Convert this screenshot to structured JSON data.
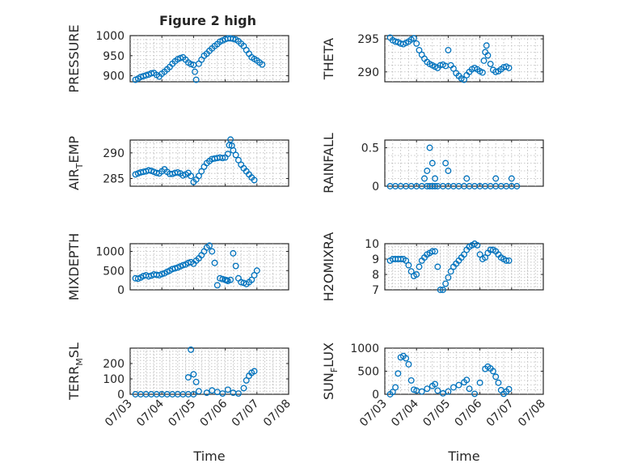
{
  "figure": {
    "title": "Figure 2 high"
  },
  "chart_data": [
    {
      "type": "scatter",
      "title": "Figure 2 high",
      "xlabel": "",
      "ylabel": "PRESSURE",
      "ylim": [
        885,
        1000
      ],
      "yticks": [
        900,
        950,
        1000
      ],
      "show_xticks": false,
      "series": [
        {
          "x": [
            "2021-07-03 04:00",
            "2021-07-03 06:00",
            "2021-07-03 08:00",
            "2021-07-03 10:00",
            "2021-07-03 12:00",
            "2021-07-03 14:00",
            "2021-07-03 16:00",
            "2021-07-03 18:00",
            "2021-07-03 20:00",
            "2021-07-03 22:00",
            "2021-07-04 00:00",
            "2021-07-04 02:00",
            "2021-07-04 04:00",
            "2021-07-04 06:00",
            "2021-07-04 08:00",
            "2021-07-04 10:00",
            "2021-07-04 12:00",
            "2021-07-04 14:00",
            "2021-07-04 16:00",
            "2021-07-04 18:00",
            "2021-07-04 20:00",
            "2021-07-04 22:00",
            "2021-07-05 00:00",
            "2021-07-05 01:00",
            "2021-07-05 02:00",
            "2021-07-05 04:00",
            "2021-07-05 06:00",
            "2021-07-05 08:00",
            "2021-07-05 10:00",
            "2021-07-05 12:00",
            "2021-07-05 14:00",
            "2021-07-05 16:00",
            "2021-07-05 18:00",
            "2021-07-05 20:00",
            "2021-07-05 22:00",
            "2021-07-06 00:00",
            "2021-07-06 02:00",
            "2021-07-06 04:00",
            "2021-07-06 06:00",
            "2021-07-06 08:00",
            "2021-07-06 10:00",
            "2021-07-06 12:00",
            "2021-07-06 14:00",
            "2021-07-06 16:00",
            "2021-07-06 18:00",
            "2021-07-06 20:00",
            "2021-07-06 22:00",
            "2021-07-07 00:00",
            "2021-07-07 02:00",
            "2021-07-07 04:00"
          ],
          "y": [
            890,
            893,
            897,
            899,
            901,
            903,
            906,
            907,
            902,
            898,
            905,
            910,
            916,
            922,
            930,
            936,
            941,
            944,
            946,
            940,
            933,
            929,
            927,
            910,
            890,
            930,
            940,
            950,
            955,
            962,
            968,
            974,
            979,
            985,
            988,
            991,
            993,
            993,
            992,
            990,
            986,
            980,
            974,
            964,
            955,
            946,
            942,
            938,
            933,
            928
          ]
        }
      ]
    },
    {
      "type": "scatter",
      "xlabel": "",
      "ylabel": "THETA",
      "ylim": [
        288.5,
        295.5
      ],
      "yticks": [
        290,
        295
      ],
      "show_xticks": false,
      "series": [
        {
          "x": [
            "2021-07-03 04:00",
            "2021-07-03 06:00",
            "2021-07-03 08:00",
            "2021-07-03 10:00",
            "2021-07-03 12:00",
            "2021-07-03 14:00",
            "2021-07-03 16:00",
            "2021-07-03 18:00",
            "2021-07-03 20:00",
            "2021-07-03 22:00",
            "2021-07-04 00:00",
            "2021-07-04 02:00",
            "2021-07-04 04:00",
            "2021-07-04 06:00",
            "2021-07-04 08:00",
            "2021-07-04 10:00",
            "2021-07-04 12:00",
            "2021-07-04 14:00",
            "2021-07-04 16:00",
            "2021-07-04 18:00",
            "2021-07-04 20:00",
            "2021-07-04 22:00",
            "2021-07-05 00:00",
            "2021-07-05 02:00",
            "2021-07-05 04:00",
            "2021-07-05 06:00",
            "2021-07-05 08:00",
            "2021-07-05 10:00",
            "2021-07-05 12:00",
            "2021-07-05 14:00",
            "2021-07-05 16:00",
            "2021-07-05 18:00",
            "2021-07-05 20:00",
            "2021-07-05 22:00",
            "2021-07-06 00:00",
            "2021-07-06 02:00",
            "2021-07-06 03:00",
            "2021-07-06 04:00",
            "2021-07-06 05:00",
            "2021-07-06 06:00",
            "2021-07-06 08:00",
            "2021-07-06 10:00",
            "2021-07-06 12:00",
            "2021-07-06 14:00",
            "2021-07-06 16:00",
            "2021-07-06 18:00",
            "2021-07-06 20:00",
            "2021-07-06 22:00"
          ],
          "y": [
            295.2,
            294.8,
            294.6,
            294.5,
            294.3,
            294.2,
            294.4,
            294.6,
            294.9,
            295.1,
            294.3,
            293.3,
            292.6,
            292.0,
            291.5,
            291.2,
            291.0,
            290.8,
            290.6,
            291.0,
            291.1,
            290.9,
            293.3,
            291.0,
            290.5,
            289.8,
            289.4,
            289.0,
            288.8,
            289.5,
            290.0,
            290.4,
            290.6,
            290.4,
            290.1,
            289.9,
            291.7,
            293.0,
            294.0,
            292.5,
            291.2,
            290.3,
            290.0,
            290.1,
            290.4,
            290.7,
            290.8,
            290.6
          ]
        }
      ]
    },
    {
      "type": "scatter",
      "xlabel": "",
      "ylabel": "AIR_TEMP",
      "ylim": [
        283.5,
        292.5
      ],
      "yticks": [
        285,
        290
      ],
      "show_xticks": false,
      "series": [
        {
          "x": [
            "2021-07-03 04:00",
            "2021-07-03 06:00",
            "2021-07-03 08:00",
            "2021-07-03 10:00",
            "2021-07-03 12:00",
            "2021-07-03 14:00",
            "2021-07-03 16:00",
            "2021-07-03 18:00",
            "2021-07-03 20:00",
            "2021-07-03 22:00",
            "2021-07-04 00:00",
            "2021-07-04 02:00",
            "2021-07-04 04:00",
            "2021-07-04 06:00",
            "2021-07-04 08:00",
            "2021-07-04 10:00",
            "2021-07-04 12:00",
            "2021-07-04 14:00",
            "2021-07-04 16:00",
            "2021-07-04 18:00",
            "2021-07-04 20:00",
            "2021-07-04 22:00",
            "2021-07-05 00:00",
            "2021-07-05 02:00",
            "2021-07-05 04:00",
            "2021-07-05 06:00",
            "2021-07-05 08:00",
            "2021-07-05 10:00",
            "2021-07-05 12:00",
            "2021-07-05 14:00",
            "2021-07-05 16:00",
            "2021-07-05 18:00",
            "2021-07-05 20:00",
            "2021-07-05 22:00",
            "2021-07-06 00:00",
            "2021-07-06 02:00",
            "2021-07-06 03:00",
            "2021-07-06 04:00",
            "2021-07-06 05:00",
            "2021-07-06 06:00",
            "2021-07-06 08:00",
            "2021-07-06 10:00",
            "2021-07-06 12:00",
            "2021-07-06 14:00",
            "2021-07-06 16:00",
            "2021-07-06 18:00",
            "2021-07-06 20:00",
            "2021-07-06 22:00"
          ],
          "y": [
            285.8,
            286.0,
            286.2,
            286.3,
            286.4,
            286.6,
            286.5,
            286.3,
            286.1,
            286.0,
            286.4,
            286.8,
            286.3,
            285.9,
            285.9,
            286.1,
            286.2,
            286.0,
            285.6,
            285.8,
            286.1,
            285.5,
            284.3,
            284.8,
            285.5,
            286.4,
            287.3,
            288.0,
            288.4,
            288.8,
            288.9,
            289.0,
            289.1,
            289.0,
            289.1,
            289.8,
            291.5,
            292.6,
            291.4,
            290.5,
            289.6,
            288.6,
            287.7,
            287.0,
            286.4,
            285.8,
            285.2,
            284.7
          ]
        }
      ]
    },
    {
      "type": "scatter",
      "xlabel": "",
      "ylabel": "RAINFALL",
      "ylim": [
        0,
        0.6
      ],
      "yticks": [
        0,
        0.5
      ],
      "show_xticks": false,
      "series": [
        {
          "x": [
            "2021-07-03 04:00",
            "2021-07-03 08:00",
            "2021-07-03 12:00",
            "2021-07-03 16:00",
            "2021-07-03 20:00",
            "2021-07-04 00:00",
            "2021-07-04 04:00",
            "2021-07-04 08:00",
            "2021-07-04 10:00",
            "2021-07-04 12:00",
            "2021-07-04 14:00",
            "2021-07-04 16:00",
            "2021-07-04 20:00",
            "2021-07-05 00:00",
            "2021-07-05 04:00",
            "2021-07-05 08:00",
            "2021-07-05 12:00",
            "2021-07-05 16:00",
            "2021-07-05 20:00",
            "2021-07-06 00:00",
            "2021-07-06 04:00",
            "2021-07-06 08:00",
            "2021-07-06 12:00",
            "2021-07-06 16:00",
            "2021-07-06 20:00",
            "2021-07-07 00:00",
            "2021-07-07 04:00",
            "2021-07-04 06:00",
            "2021-07-04 08:00",
            "2021-07-04 10:00",
            "2021-07-04 12:00",
            "2021-07-04 14:00",
            "2021-07-04 22:00",
            "2021-07-05 00:00",
            "2021-07-05 14:00",
            "2021-07-06 12:00",
            "2021-07-07 00:00"
          ],
          "y": [
            0,
            0,
            0,
            0,
            0,
            0,
            0,
            0,
            0,
            0,
            0,
            0,
            0,
            0,
            0,
            0,
            0,
            0,
            0,
            0,
            0,
            0,
            0,
            0,
            0,
            0,
            0,
            0.1,
            0.2,
            0.5,
            0.3,
            0.1,
            0.3,
            0.2,
            0.1,
            0.1,
            0.1
          ]
        }
      ]
    },
    {
      "type": "scatter",
      "xlabel": "",
      "ylabel": "MIXDEPTH",
      "ylim": [
        0,
        1200
      ],
      "yticks": [
        0,
        500,
        1000
      ],
      "show_xticks": false,
      "series": [
        {
          "x": [
            "2021-07-03 04:00",
            "2021-07-03 06:00",
            "2021-07-03 08:00",
            "2021-07-03 10:00",
            "2021-07-03 12:00",
            "2021-07-03 14:00",
            "2021-07-03 16:00",
            "2021-07-03 18:00",
            "2021-07-03 20:00",
            "2021-07-03 22:00",
            "2021-07-04 00:00",
            "2021-07-04 02:00",
            "2021-07-04 04:00",
            "2021-07-04 06:00",
            "2021-07-04 08:00",
            "2021-07-04 10:00",
            "2021-07-04 12:00",
            "2021-07-04 14:00",
            "2021-07-04 16:00",
            "2021-07-04 18:00",
            "2021-07-04 20:00",
            "2021-07-04 22:00",
            "2021-07-05 00:00",
            "2021-07-05 02:00",
            "2021-07-05 04:00",
            "2021-07-05 06:00",
            "2021-07-05 08:00",
            "2021-07-05 10:00",
            "2021-07-05 12:00",
            "2021-07-05 14:00",
            "2021-07-05 16:00",
            "2021-07-05 18:00",
            "2021-07-05 20:00",
            "2021-07-05 22:00",
            "2021-07-06 00:00",
            "2021-07-06 01:00",
            "2021-07-06 02:00",
            "2021-07-06 04:00",
            "2021-07-06 06:00",
            "2021-07-06 08:00",
            "2021-07-06 10:00",
            "2021-07-06 12:00",
            "2021-07-06 14:00",
            "2021-07-06 16:00",
            "2021-07-06 18:00",
            "2021-07-06 20:00",
            "2021-07-06 22:00",
            "2021-07-07 00:00"
          ],
          "y": [
            300,
            290,
            320,
            360,
            380,
            350,
            370,
            400,
            390,
            380,
            410,
            430,
            470,
            500,
            540,
            560,
            580,
            610,
            640,
            660,
            700,
            720,
            680,
            760,
            820,
            900,
            1000,
            1100,
            1150,
            1000,
            700,
            120,
            300,
            280,
            260,
            250,
            230,
            260,
            950,
            620,
            300,
            200,
            180,
            150,
            200,
            260,
            380,
            500
          ]
        }
      ]
    },
    {
      "type": "scatter",
      "xlabel": "",
      "ylabel": "H2OMIXRA",
      "ylim": [
        7,
        10
      ],
      "yticks": [
        7,
        8,
        9,
        10
      ],
      "show_xticks": false,
      "series": [
        {
          "x": [
            "2021-07-03 04:00",
            "2021-07-03 06:00",
            "2021-07-03 08:00",
            "2021-07-03 10:00",
            "2021-07-03 12:00",
            "2021-07-03 14:00",
            "2021-07-03 16:00",
            "2021-07-03 18:00",
            "2021-07-03 20:00",
            "2021-07-03 22:00",
            "2021-07-04 00:00",
            "2021-07-04 02:00",
            "2021-07-04 04:00",
            "2021-07-04 06:00",
            "2021-07-04 08:00",
            "2021-07-04 10:00",
            "2021-07-04 12:00",
            "2021-07-04 14:00",
            "2021-07-04 16:00",
            "2021-07-04 18:00",
            "2021-07-04 20:00",
            "2021-07-04 22:00",
            "2021-07-05 00:00",
            "2021-07-05 02:00",
            "2021-07-05 04:00",
            "2021-07-05 06:00",
            "2021-07-05 08:00",
            "2021-07-05 10:00",
            "2021-07-05 12:00",
            "2021-07-05 14:00",
            "2021-07-05 16:00",
            "2021-07-05 18:00",
            "2021-07-05 20:00",
            "2021-07-05 22:00",
            "2021-07-06 00:00",
            "2021-07-06 02:00",
            "2021-07-06 04:00",
            "2021-07-06 06:00",
            "2021-07-06 08:00",
            "2021-07-06 10:00",
            "2021-07-06 12:00",
            "2021-07-06 14:00",
            "2021-07-06 16:00",
            "2021-07-06 18:00",
            "2021-07-06 20:00",
            "2021-07-06 22:00"
          ],
          "y": [
            8.9,
            9.0,
            9.0,
            9.0,
            9.0,
            9.0,
            8.9,
            8.6,
            8.2,
            7.9,
            8.0,
            8.5,
            8.9,
            9.1,
            9.3,
            9.4,
            9.5,
            9.5,
            8.5,
            7.0,
            7.0,
            7.4,
            7.8,
            8.2,
            8.5,
            8.7,
            8.9,
            9.1,
            9.3,
            9.6,
            9.8,
            9.9,
            10.0,
            9.9,
            9.3,
            9.0,
            9.1,
            9.4,
            9.6,
            9.6,
            9.5,
            9.3,
            9.1,
            9.0,
            8.9,
            8.9
          ]
        }
      ]
    },
    {
      "type": "scatter",
      "xlabel": "Time",
      "ylabel": "TERR_MSL",
      "ylim": [
        0,
        300
      ],
      "yticks": [
        0,
        100,
        200
      ],
      "show_xticks": true,
      "series": [
        {
          "x": [
            "2021-07-03 04:00",
            "2021-07-03 08:00",
            "2021-07-03 12:00",
            "2021-07-03 16:00",
            "2021-07-03 20:00",
            "2021-07-04 00:00",
            "2021-07-04 04:00",
            "2021-07-04 08:00",
            "2021-07-04 12:00",
            "2021-07-04 16:00",
            "2021-07-04 20:00",
            "2021-07-05 00:00",
            "2021-07-04 20:00",
            "2021-07-04 22:00",
            "2021-07-05 00:00",
            "2021-07-05 02:00",
            "2021-07-05 04:00",
            "2021-07-05 10:00",
            "2021-07-05 14:00",
            "2021-07-05 18:00",
            "2021-07-05 22:00",
            "2021-07-06 02:00",
            "2021-07-06 06:00",
            "2021-07-06 10:00",
            "2021-07-06 14:00",
            "2021-07-06 16:00",
            "2021-07-06 18:00",
            "2021-07-06 20:00",
            "2021-07-06 22:00"
          ],
          "y": [
            0,
            0,
            0,
            0,
            0,
            0,
            0,
            0,
            0,
            0,
            0,
            0,
            110,
            290,
            130,
            80,
            20,
            10,
            25,
            15,
            5,
            30,
            10,
            5,
            40,
            90,
            120,
            140,
            150
          ]
        }
      ]
    },
    {
      "type": "scatter",
      "xlabel": "Time",
      "ylabel": "SUN_FLUX",
      "ylim": [
        0,
        1000
      ],
      "yticks": [
        0,
        500,
        1000
      ],
      "show_xticks": true,
      "series": [
        {
          "x": [
            "2021-07-03 04:00",
            "2021-07-03 06:00",
            "2021-07-03 08:00",
            "2021-07-03 10:00",
            "2021-07-03 12:00",
            "2021-07-03 14:00",
            "2021-07-03 16:00",
            "2021-07-03 18:00",
            "2021-07-03 20:00",
            "2021-07-03 22:00",
            "2021-07-04 00:00",
            "2021-07-04 04:00",
            "2021-07-04 08:00",
            "2021-07-04 12:00",
            "2021-07-04 14:00",
            "2021-07-04 16:00",
            "2021-07-04 20:00",
            "2021-07-05 00:00",
            "2021-07-05 04:00",
            "2021-07-05 08:00",
            "2021-07-05 12:00",
            "2021-07-05 14:00",
            "2021-07-05 16:00",
            "2021-07-05 20:00",
            "2021-07-06 00:00",
            "2021-07-06 04:00",
            "2021-07-06 06:00",
            "2021-07-06 08:00",
            "2021-07-06 10:00",
            "2021-07-06 12:00",
            "2021-07-06 14:00",
            "2021-07-06 16:00",
            "2021-07-06 18:00",
            "2021-07-06 20:00",
            "2021-07-06 22:00"
          ],
          "y": [
            0,
            50,
            150,
            450,
            800,
            830,
            780,
            650,
            300,
            100,
            80,
            60,
            120,
            180,
            220,
            80,
            20,
            60,
            150,
            200,
            260,
            310,
            120,
            10,
            250,
            550,
            600,
            560,
            500,
            380,
            250,
            90,
            10,
            60,
            110
          ]
        }
      ]
    }
  ],
  "colors": {
    "marker": "#0072BD",
    "axis": "#262626",
    "grid": "#b8b8b8",
    "background": "#ffffff"
  },
  "xaxis": {
    "start": "2021-07-03 00:00",
    "end": "2021-07-08 00:00",
    "tick_labels": [
      "07/03",
      "07/04",
      "07/05",
      "07/06",
      "07/07",
      "07/08"
    ]
  }
}
